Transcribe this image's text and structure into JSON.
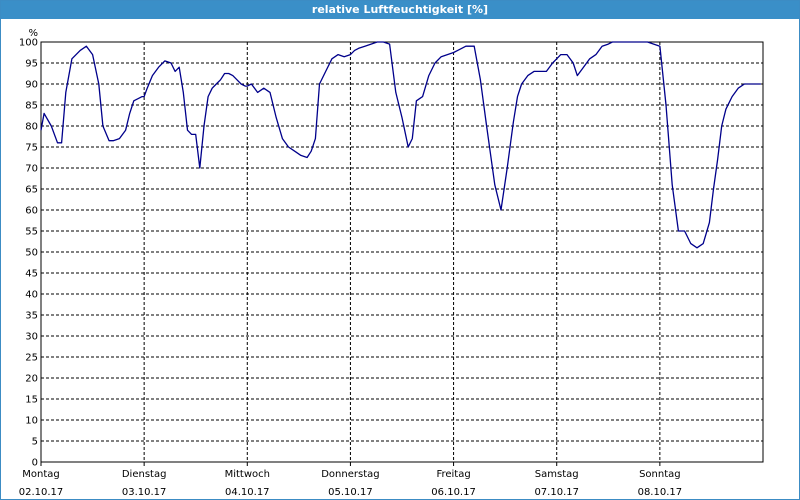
{
  "window": {
    "title": "relative Luftfeuchtigkeit [%]"
  },
  "chart_data": {
    "type": "line",
    "title": "relative Luftfeuchtigkeit [%]",
    "ylabel": "%",
    "xlabel": "",
    "ylim": [
      0,
      100
    ],
    "xlim": [
      0,
      7
    ],
    "y_ticks": [
      0,
      5,
      10,
      15,
      20,
      25,
      30,
      35,
      40,
      45,
      50,
      55,
      60,
      65,
      70,
      75,
      80,
      85,
      90,
      95,
      100
    ],
    "grid": true,
    "day_labels": [
      {
        "day": "Montag",
        "date": "02.10.17"
      },
      {
        "day": "Dienstag",
        "date": "03.10.17"
      },
      {
        "day": "Mittwoch",
        "date": "04.10.17"
      },
      {
        "day": "Donnerstag",
        "date": "05.10.17"
      },
      {
        "day": "Freitag",
        "date": "06.10.17"
      },
      {
        "day": "Samstag",
        "date": "07.10.17"
      },
      {
        "day": "Sonntag",
        "date": "08.10.17"
      }
    ],
    "series": [
      {
        "color": "#00008b",
        "x": [
          0.0,
          0.03,
          0.1,
          0.16,
          0.2,
          0.24,
          0.3,
          0.38,
          0.44,
          0.5,
          0.56,
          0.6,
          0.66,
          0.7,
          0.76,
          0.82,
          0.86,
          0.9,
          0.94,
          0.98,
          1.0,
          1.03,
          1.08,
          1.14,
          1.2,
          1.26,
          1.3,
          1.34,
          1.38,
          1.42,
          1.46,
          1.5,
          1.54,
          1.58,
          1.62,
          1.66,
          1.7,
          1.74,
          1.78,
          1.82,
          1.86,
          1.9,
          1.94,
          1.98,
          2.0,
          2.04,
          2.1,
          2.16,
          2.22,
          2.28,
          2.34,
          2.4,
          2.46,
          2.52,
          2.58,
          2.62,
          2.66,
          2.7,
          2.76,
          2.82,
          2.88,
          2.94,
          3.0,
          3.04,
          3.08,
          3.14,
          3.2,
          3.26,
          3.32,
          3.38,
          3.44,
          3.5,
          3.56,
          3.6,
          3.64,
          3.7,
          3.76,
          3.82,
          3.88,
          3.94,
          4.0,
          4.04,
          4.08,
          4.12,
          4.16,
          4.2,
          4.26,
          4.32,
          4.4,
          4.46,
          4.52,
          4.58,
          4.62,
          4.66,
          4.72,
          4.78,
          4.84,
          4.9,
          4.96,
          5.0,
          5.04,
          5.1,
          5.16,
          5.2,
          5.26,
          5.32,
          5.38,
          5.44,
          5.5,
          5.54,
          5.58,
          5.64,
          5.7,
          5.76,
          5.82,
          5.88,
          5.94,
          6.0,
          6.06,
          6.12,
          6.18,
          6.24,
          6.3,
          6.36,
          6.42,
          6.48,
          6.52,
          6.56,
          6.6,
          6.64,
          6.7,
          6.76,
          6.82,
          6.86,
          6.9,
          6.94,
          6.98
        ],
        "y": [
          79,
          83,
          80,
          76,
          76,
          88,
          96,
          98,
          99,
          97,
          90,
          80,
          76.5,
          76.5,
          77,
          79,
          83,
          86,
          86.5,
          87,
          87,
          89,
          92,
          94,
          95.5,
          95,
          93,
          94,
          88,
          79,
          78,
          78,
          70,
          80,
          87,
          89,
          90,
          91,
          92.5,
          92.5,
          92,
          91,
          90,
          89.5,
          89.5,
          90,
          88,
          89,
          88,
          82,
          77,
          75,
          74,
          73,
          72.5,
          74,
          77,
          90,
          93,
          96,
          97,
          96.5,
          97,
          98,
          98.5,
          99,
          99.5,
          100,
          100,
          99.5,
          88,
          82,
          75,
          77,
          86,
          87,
          92,
          95,
          96.5,
          97,
          97.5,
          98,
          98.5,
          99,
          99,
          99,
          91,
          80,
          66,
          60,
          70,
          81,
          87,
          90,
          92,
          93,
          93,
          93,
          95,
          96,
          97,
          97,
          95,
          92,
          94,
          96,
          97,
          99,
          99.5,
          100,
          100,
          100,
          100,
          100,
          100,
          100,
          99.5,
          99,
          85,
          66,
          55,
          55,
          52,
          51,
          52,
          57,
          65,
          72,
          80,
          84,
          87,
          89,
          90,
          90,
          90,
          90,
          90
        ]
      }
    ]
  }
}
